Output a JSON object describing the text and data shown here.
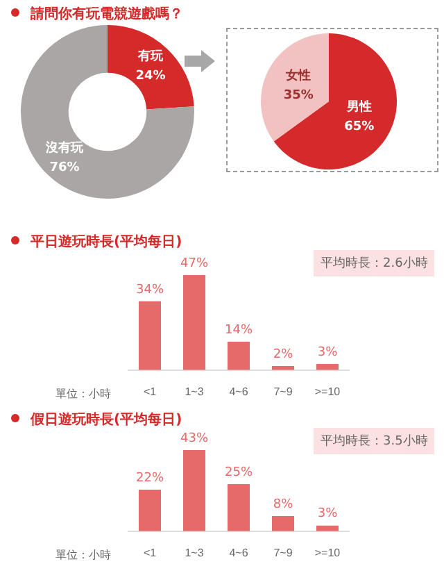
{
  "chart_data": [
    {
      "type": "donut",
      "title": "請問你有玩電競遊戲嗎？",
      "categories": [
        "有玩",
        "沒有玩"
      ],
      "values": [
        24,
        76
      ],
      "value_labels": [
        "24%",
        "76%"
      ],
      "colors": [
        "#d52a2a",
        "#aaa6a5"
      ]
    },
    {
      "type": "pie",
      "categories": [
        "男性",
        "女性"
      ],
      "values": [
        65,
        35
      ],
      "value_labels": [
        "65%",
        "35%"
      ],
      "colors": [
        "#d42a2b",
        "#f2c2c2"
      ]
    },
    {
      "type": "bar",
      "title": "平日遊玩時長(平均每日)",
      "xlabel": "單位：小時",
      "categories": [
        "<1",
        "1~3",
        "4~6",
        "7~9",
        ">=10"
      ],
      "values": [
        34,
        47,
        14,
        2,
        3
      ],
      "value_labels": [
        "34%",
        "47%",
        "14%",
        "2%",
        "3%"
      ],
      "color": "#e66a69",
      "annotations": [
        "平均時長：2.6小時"
      ]
    },
    {
      "type": "bar",
      "title": "假日遊玩時長(平均每日)",
      "xlabel": "單位：小時",
      "categories": [
        "<1",
        "1~3",
        "4~6",
        "7~9",
        ">=10"
      ],
      "values": [
        22,
        43,
        25,
        8,
        3
      ],
      "value_labels": [
        "22%",
        "43%",
        "25%",
        "8%",
        "3%"
      ],
      "color": "#e66a69",
      "annotations": [
        "平均時長：3.5小時"
      ]
    }
  ]
}
